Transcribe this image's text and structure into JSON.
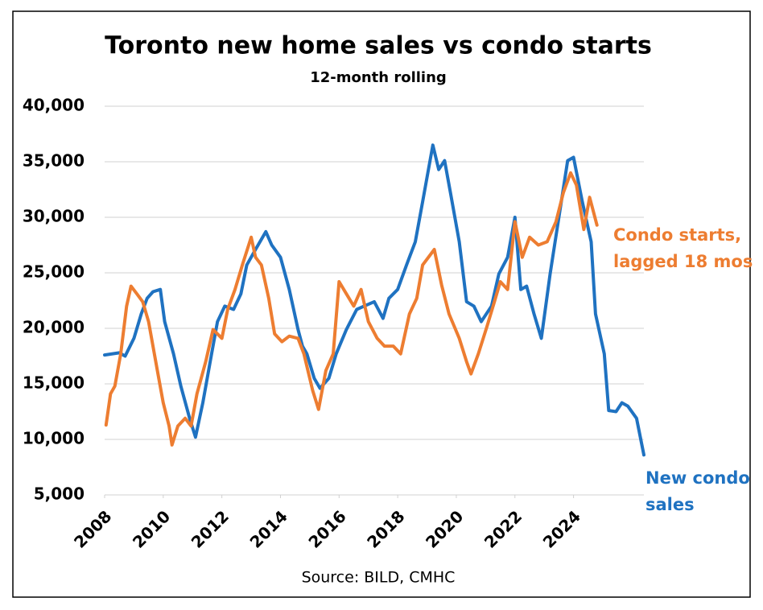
{
  "chart_data": {
    "type": "line",
    "title": "Toronto new home sales vs condo starts",
    "subtitle": "12-month rolling",
    "source": "Source: BILD, CMHC",
    "xlim": [
      2008,
      2026.4
    ],
    "xticks": [
      2008,
      2010,
      2012,
      2014,
      2016,
      2018,
      2020,
      2022,
      2024
    ],
    "ylim": [
      5000,
      40000
    ],
    "yticks": [
      {
        "value": 5000,
        "label": "5,000"
      },
      {
        "value": 10000,
        "label": "10,000"
      },
      {
        "value": 15000,
        "label": "15,000"
      },
      {
        "value": 20000,
        "label": "20,000"
      },
      {
        "value": 25000,
        "label": "25,000"
      },
      {
        "value": 30000,
        "label": "30,000"
      },
      {
        "value": 35000,
        "label": "35,000"
      },
      {
        "value": 40000,
        "label": "40,000"
      }
    ],
    "grid": true,
    "series": [
      {
        "name": "New condo sales",
        "color": "#1f72c1",
        "x": [
          2008.0,
          2008.5,
          2008.7,
          2009.0,
          2009.25,
          2009.45,
          2009.65,
          2009.9,
          2010.05,
          2010.35,
          2010.6,
          2010.9,
          2011.1,
          2011.35,
          2011.65,
          2011.85,
          2012.1,
          2012.4,
          2012.65,
          2012.85,
          2013.15,
          2013.5,
          2013.7,
          2014.0,
          2014.3,
          2014.6,
          2014.75,
          2014.9,
          2015.15,
          2015.35,
          2015.65,
          2015.9,
          2016.25,
          2016.6,
          2016.85,
          2017.2,
          2017.5,
          2017.7,
          2018.0,
          2018.3,
          2018.6,
          2018.85,
          2019.2,
          2019.4,
          2019.6,
          2019.8,
          2020.1,
          2020.35,
          2020.6,
          2020.85,
          2021.2,
          2021.45,
          2021.75,
          2022.0,
          2022.2,
          2022.4,
          2022.65,
          2022.9,
          2023.2,
          2023.5,
          2023.8,
          2024.0,
          2024.3,
          2024.6,
          2024.75,
          2025.05,
          2025.2,
          2025.45,
          2025.65,
          2025.85,
          2026.15,
          2026.4
        ],
        "values": [
          17600,
          17800,
          17500,
          19100,
          21300,
          22700,
          23300,
          23500,
          20600,
          17700,
          14800,
          11900,
          10200,
          13300,
          17700,
          20600,
          22000,
          21700,
          23100,
          25700,
          27100,
          28700,
          27500,
          26400,
          23500,
          19900,
          18400,
          17700,
          15500,
          14600,
          15500,
          17700,
          19900,
          21700,
          22000,
          22400,
          20900,
          22700,
          23500,
          25700,
          27800,
          31400,
          36500,
          34300,
          35100,
          32200,
          27800,
          22400,
          22000,
          20600,
          22000,
          24900,
          26400,
          30000,
          23500,
          23800,
          21300,
          19100,
          24900,
          30000,
          35100,
          35400,
          31400,
          27800,
          21300,
          17700,
          12600,
          12500,
          13300,
          13000,
          11900,
          8600
        ]
      },
      {
        "name": "Condo starts, lagged 18 mos",
        "color": "#ed7d31",
        "x": [
          2008.05,
          2008.2,
          2008.35,
          2008.55,
          2008.75,
          2008.9,
          2009.1,
          2009.3,
          2009.5,
          2009.8,
          2010.0,
          2010.2,
          2010.3,
          2010.5,
          2010.75,
          2010.95,
          2011.15,
          2011.45,
          2011.7,
          2012.0,
          2012.2,
          2012.45,
          2012.7,
          2013.0,
          2013.15,
          2013.35,
          2013.6,
          2013.8,
          2014.05,
          2014.3,
          2014.6,
          2014.8,
          2015.1,
          2015.3,
          2015.55,
          2015.8,
          2016.0,
          2016.25,
          2016.5,
          2016.75,
          2017.0,
          2017.3,
          2017.55,
          2017.85,
          2018.1,
          2018.4,
          2018.65,
          2018.85,
          2019.25,
          2019.5,
          2019.75,
          2020.1,
          2020.35,
          2020.5,
          2020.75,
          2021.05,
          2021.3,
          2021.5,
          2021.75,
          2022.0,
          2022.25,
          2022.5,
          2022.8,
          2023.1,
          2023.4,
          2023.65,
          2023.9,
          2024.1,
          2024.35,
          2024.55,
          2024.8
        ],
        "values": [
          11300,
          14100,
          14800,
          17700,
          22000,
          23800,
          23100,
          22400,
          20600,
          16200,
          13300,
          11200,
          9500,
          11200,
          11900,
          11200,
          14100,
          17000,
          19900,
          19100,
          21700,
          23500,
          25700,
          28200,
          26400,
          25700,
          22700,
          19500,
          18800,
          19300,
          19100,
          17700,
          14400,
          12700,
          16200,
          17700,
          24200,
          23100,
          22000,
          23500,
          20600,
          19100,
          18400,
          18400,
          17700,
          21300,
          22700,
          25700,
          27100,
          23900,
          21300,
          19100,
          17000,
          15900,
          17700,
          20200,
          22400,
          24200,
          23500,
          29600,
          26400,
          28200,
          27500,
          27800,
          29600,
          32200,
          34000,
          32900,
          28900,
          31800,
          29300
        ]
      }
    ]
  }
}
